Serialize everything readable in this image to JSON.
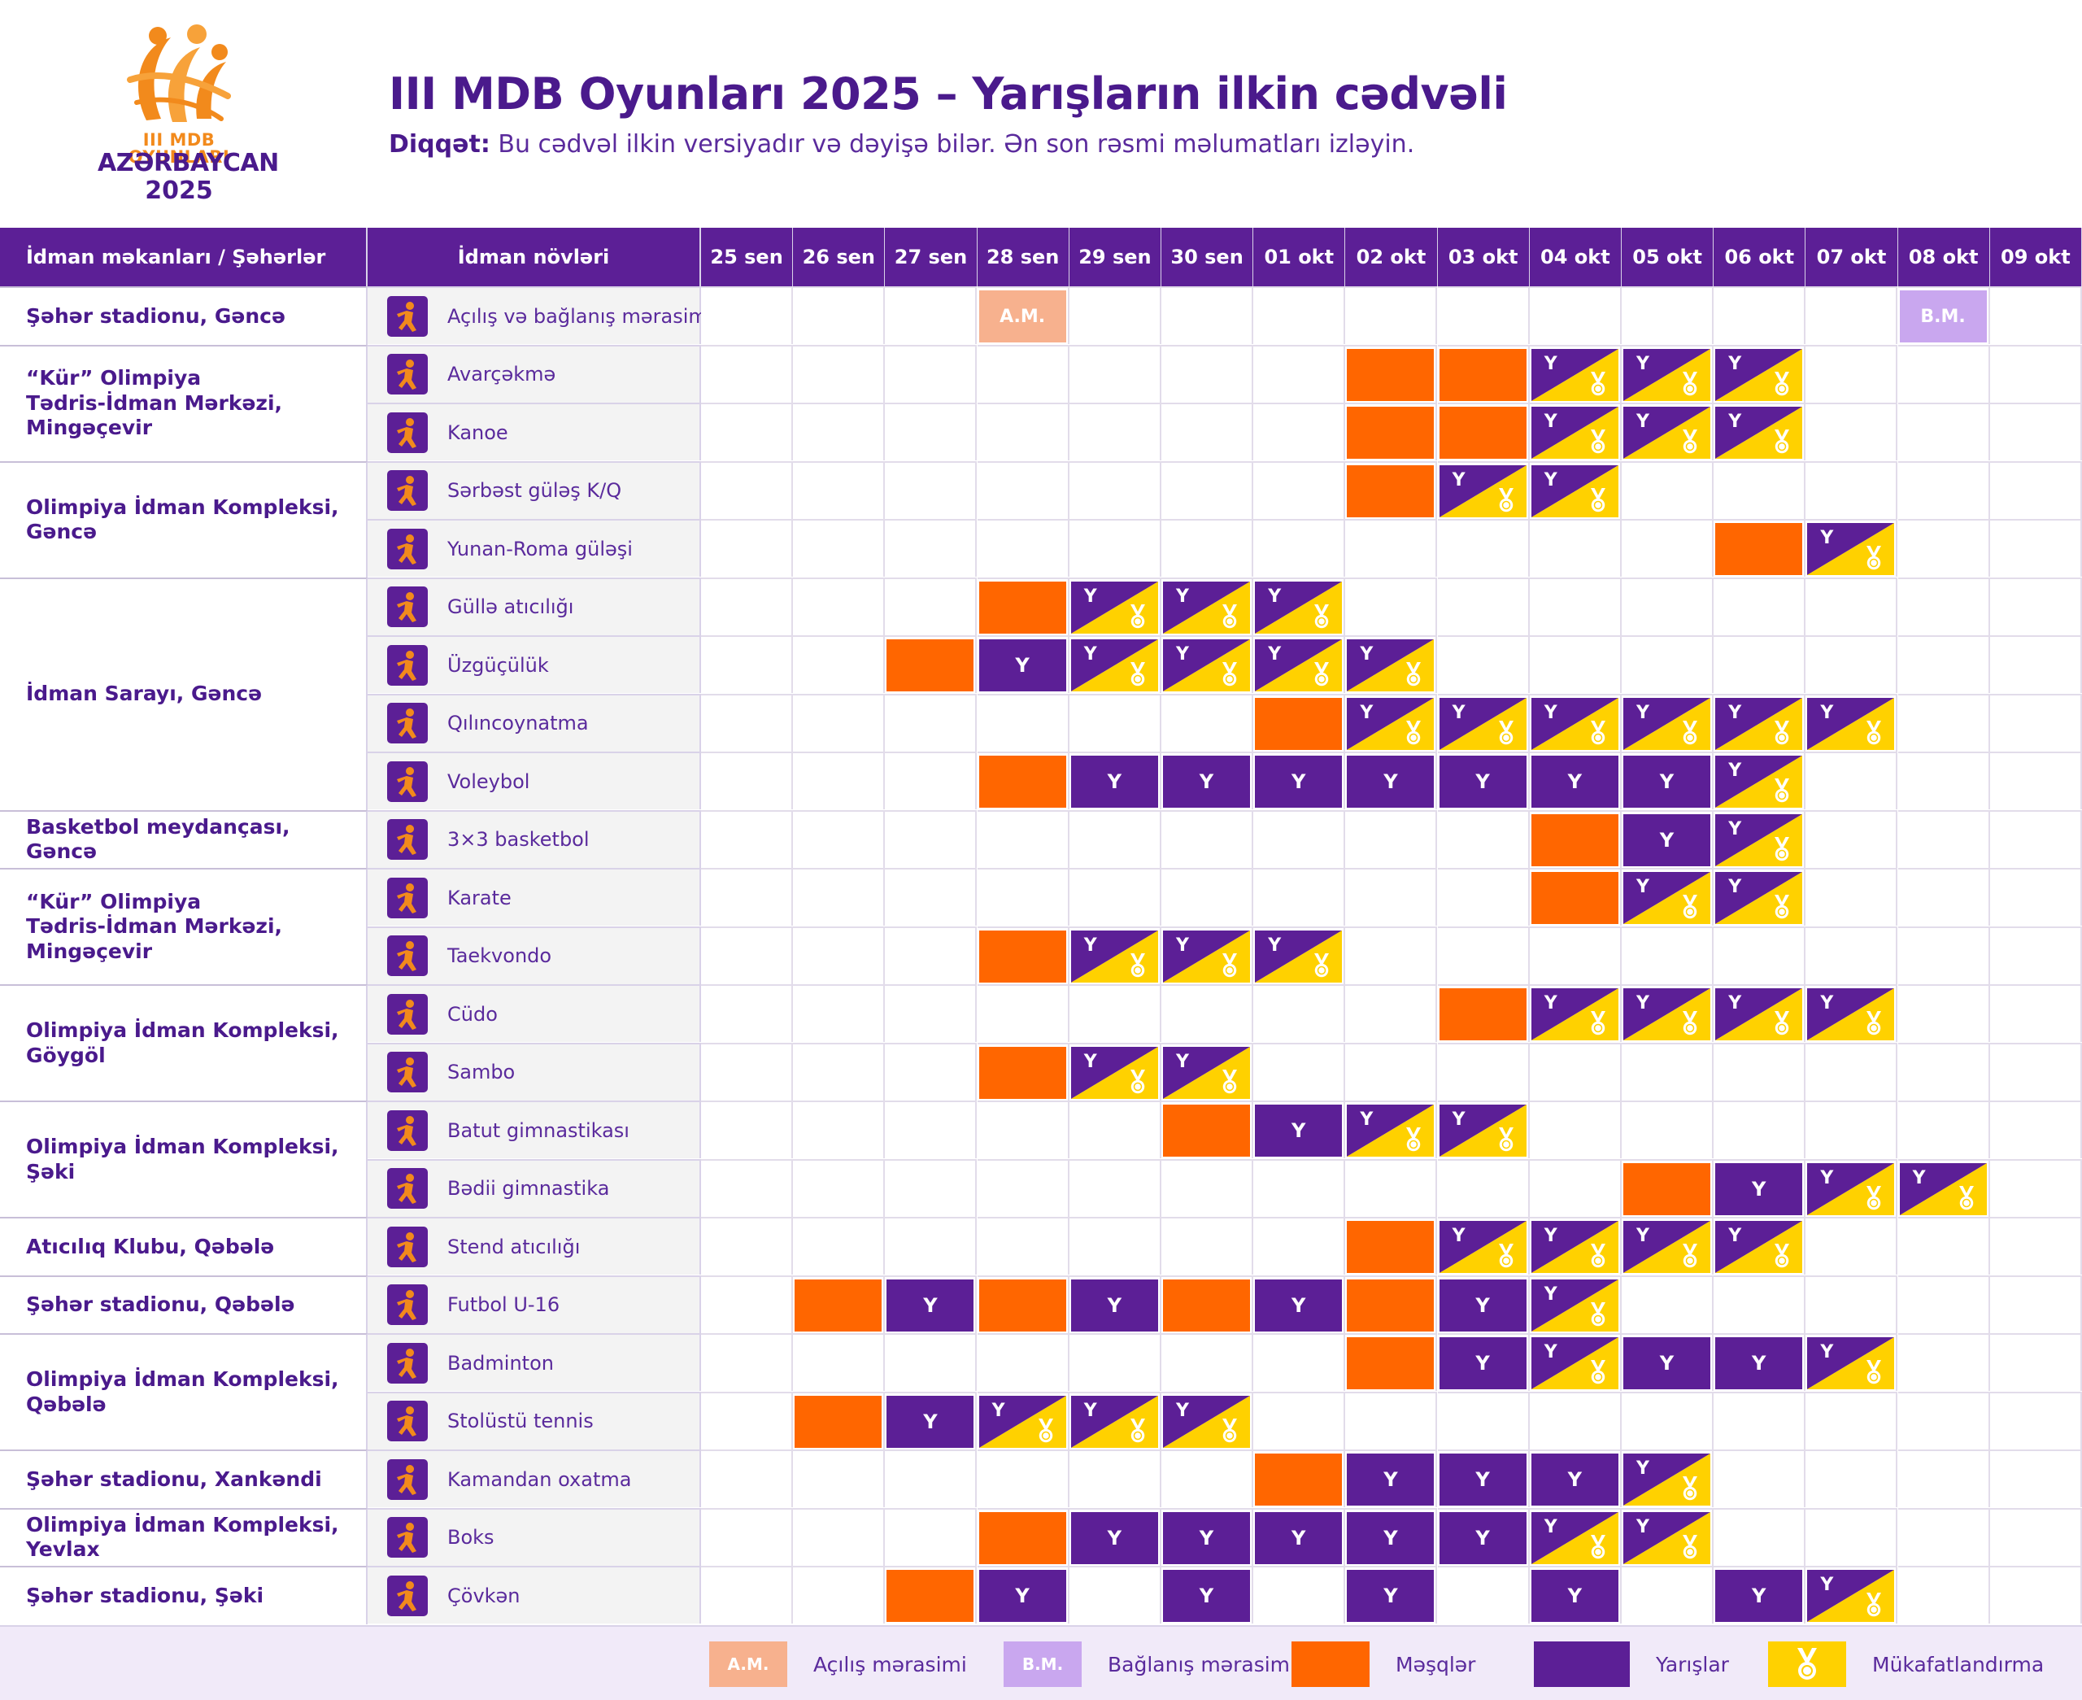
{
  "logo": {
    "line1": "III MDB OYUNLARI",
    "line2": "AZƏRBAYCAN",
    "line3": "2025",
    "colors": {
      "orange": "#f28a1c",
      "purple": "#4a1a8c"
    }
  },
  "title": "III MDB Oyunları 2025 – Yarışların ilkin cədvəli",
  "notice": {
    "label": "Diqqət:",
    "text": " Bu cədvəl ilkin versiyadır və dəyişə bilər. Ən son rəsmi məlumatları izləyin."
  },
  "colors": {
    "header": "#5c1f96",
    "training": "#ff6600",
    "competition": "#5c1f96",
    "medal": "#ffd100",
    "opening": "#f7b18e",
    "closing": "#c9a7ef"
  },
  "table": {
    "venue_header": "İdman məkanları / Şəhərlər",
    "sport_header": "İdman növləri",
    "dates": [
      "25 sen",
      "26 sen",
      "27 sen",
      "28 sen",
      "29 sen",
      "30 sen",
      "01 okt",
      "02 okt",
      "03 okt",
      "04 okt",
      "05 okt",
      "06 okt",
      "07 okt",
      "08 okt",
      "09 okt"
    ],
    "competition_letter": "Y",
    "venues": [
      {
        "name": "Şəhər stadionu, Gəncə",
        "rows": 1
      },
      {
        "name": "“Kür” Olimpiya\nTədris-İdman Mərkəzi,\nMingəçevir",
        "rows": 2
      },
      {
        "name": "Olimpiya İdman Kompleksi,\nGəncə",
        "rows": 2
      },
      {
        "name": "İdman Sarayı, Gəncə",
        "rows": 4
      },
      {
        "name": "Basketbol meydançası, Gəncə",
        "rows": 1
      },
      {
        "name": "“Kür” Olimpiya\nTədris-İdman Mərkəzi,\nMingəçevir",
        "rows": 2
      },
      {
        "name": "Olimpiya İdman Kompleksi,\nGöygöl",
        "rows": 2
      },
      {
        "name": "Olimpiya İdman Kompleksi,\nŞəki",
        "rows": 2
      },
      {
        "name": "Atıcılıq Klubu, Qəbələ",
        "rows": 1
      },
      {
        "name": "Şəhər stadionu, Qəbələ",
        "rows": 1
      },
      {
        "name": "Olimpiya İdman Kompleksi,\nQəbələ",
        "rows": 2
      },
      {
        "name": "Şəhər stadionu, Xankəndi",
        "rows": 1
      },
      {
        "name": "Olimpiya İdman Kompleksi, Yevlax",
        "rows": 1
      },
      {
        "name": "Şəhər stadionu, Şəki",
        "rows": 1
      }
    ],
    "sports": [
      {
        "name": "Açılış və bağlanış mərasimləri",
        "icon": "ceremony-icon",
        "cells": [
          "",
          "",
          "",
          "A",
          "",
          "",
          "",
          "",
          "",
          "",
          "",
          "",
          "",
          "B",
          ""
        ]
      },
      {
        "name": "Avarçəkmə",
        "icon": "rowing-icon",
        "cells": [
          "",
          "",
          "",
          "",
          "",
          "",
          "",
          "T",
          "T",
          "F",
          "F",
          "F",
          "",
          "",
          ""
        ]
      },
      {
        "name": "Kanoe",
        "icon": "canoe-icon",
        "cells": [
          "",
          "",
          "",
          "",
          "",
          "",
          "",
          "T",
          "T",
          "F",
          "F",
          "F",
          "",
          "",
          ""
        ]
      },
      {
        "name": "Sərbəst güləş K/Q",
        "icon": "freestyle-wrestling-icon",
        "cells": [
          "",
          "",
          "",
          "",
          "",
          "",
          "",
          "T",
          "F",
          "F",
          "",
          "",
          "",
          "",
          ""
        ]
      },
      {
        "name": "Yunan-Roma güləşi",
        "icon": "greco-roman-wrestling-icon",
        "cells": [
          "",
          "",
          "",
          "",
          "",
          "",
          "",
          "",
          "",
          "",
          "",
          "T",
          "F",
          "",
          ""
        ]
      },
      {
        "name": "Güllə atıcılığı",
        "icon": "shooting-icon",
        "cells": [
          "",
          "",
          "",
          "T",
          "F",
          "F",
          "F",
          "",
          "",
          "",
          "",
          "",
          "",
          "",
          ""
        ]
      },
      {
        "name": "Üzgüçülük",
        "icon": "swimming-icon",
        "cells": [
          "",
          "",
          "T",
          "C",
          "F",
          "F",
          "F",
          "F",
          "",
          "",
          "",
          "",
          "",
          "",
          ""
        ]
      },
      {
        "name": "Qılıncoynatma",
        "icon": "fencing-icon",
        "cells": [
          "",
          "",
          "",
          "",
          "",
          "",
          "T",
          "F",
          "F",
          "F",
          "F",
          "F",
          "F",
          "",
          ""
        ]
      },
      {
        "name": "Voleybol",
        "icon": "volleyball-icon",
        "cells": [
          "",
          "",
          "",
          "T",
          "C",
          "C",
          "C",
          "C",
          "C",
          "C",
          "C",
          "F",
          "",
          "",
          ""
        ]
      },
      {
        "name": "3×3 basketbol",
        "icon": "basketball-icon",
        "cells": [
          "",
          "",
          "",
          "",
          "",
          "",
          "",
          "",
          "",
          "T",
          "C",
          "F",
          "",
          "",
          ""
        ]
      },
      {
        "name": "Karate",
        "icon": "karate-icon",
        "cells": [
          "",
          "",
          "",
          "",
          "",
          "",
          "",
          "",
          "",
          "T",
          "F",
          "F",
          "",
          "",
          ""
        ]
      },
      {
        "name": "Taekvondo",
        "icon": "taekwondo-icon",
        "cells": [
          "",
          "",
          "",
          "T",
          "F",
          "F",
          "F",
          "",
          "",
          "",
          "",
          "",
          "",
          "",
          ""
        ]
      },
      {
        "name": "Cüdo",
        "icon": "judo-icon",
        "cells": [
          "",
          "",
          "",
          "",
          "",
          "",
          "",
          "",
          "T",
          "F",
          "F",
          "F",
          "F",
          "",
          ""
        ]
      },
      {
        "name": "Sambo",
        "icon": "sambo-icon",
        "cells": [
          "",
          "",
          "",
          "T",
          "F",
          "F",
          "",
          "",
          "",
          "",
          "",
          "",
          "",
          "",
          ""
        ]
      },
      {
        "name": "Batut gimnastikası",
        "icon": "trampoline-icon",
        "cells": [
          "",
          "",
          "",
          "",
          "",
          "T",
          "C",
          "F",
          "F",
          "",
          "",
          "",
          "",
          "",
          ""
        ]
      },
      {
        "name": "Bədii gimnastika",
        "icon": "rhythmic-gymnastics-icon",
        "cells": [
          "",
          "",
          "",
          "",
          "",
          "",
          "",
          "",
          "",
          "",
          "T",
          "C",
          "F",
          "F",
          ""
        ]
      },
      {
        "name": "Stend atıcılığı",
        "icon": "clay-shooting-icon",
        "cells": [
          "",
          "",
          "",
          "",
          "",
          "",
          "",
          "T",
          "F",
          "F",
          "F",
          "F",
          "",
          "",
          ""
        ]
      },
      {
        "name": "Futbol U-16",
        "icon": "football-icon",
        "cells": [
          "",
          "T",
          "C",
          "T",
          "C",
          "T",
          "C",
          "T",
          "C",
          "F",
          "",
          "",
          "",
          "",
          ""
        ]
      },
      {
        "name": "Badminton",
        "icon": "badminton-icon",
        "cells": [
          "",
          "",
          "",
          "",
          "",
          "",
          "",
          "T",
          "C",
          "F",
          "C",
          "C",
          "F",
          "",
          ""
        ]
      },
      {
        "name": "Stolüstü tennis",
        "icon": "table-tennis-icon",
        "cells": [
          "",
          "T",
          "C",
          "F",
          "F",
          "F",
          "",
          "",
          "",
          "",
          "",
          "",
          "",
          "",
          ""
        ]
      },
      {
        "name": "Kamandan oxatma",
        "icon": "archery-icon",
        "cells": [
          "",
          "",
          "",
          "",
          "",
          "",
          "T",
          "C",
          "C",
          "C",
          "F",
          "",
          "",
          "",
          ""
        ]
      },
      {
        "name": "Boks",
        "icon": "boxing-icon",
        "cells": [
          "",
          "",
          "",
          "T",
          "C",
          "C",
          "C",
          "C",
          "C",
          "F",
          "F",
          "",
          "",
          "",
          ""
        ]
      },
      {
        "name": "Çövkən",
        "icon": "chovgan-icon",
        "cells": [
          "",
          "",
          "T",
          "C",
          "",
          "C",
          "",
          "C",
          "",
          "C",
          "",
          "C",
          "F",
          "",
          ""
        ]
      }
    ]
  },
  "legend": {
    "opening_badge": "A.M.",
    "opening": "Açılış mərasimi",
    "closing_badge": "B.M.",
    "closing": "Bağlanış mərasimi",
    "training": "Məşqlər",
    "competition": "Yarışlar",
    "medal": "Mükafatlandırma"
  }
}
